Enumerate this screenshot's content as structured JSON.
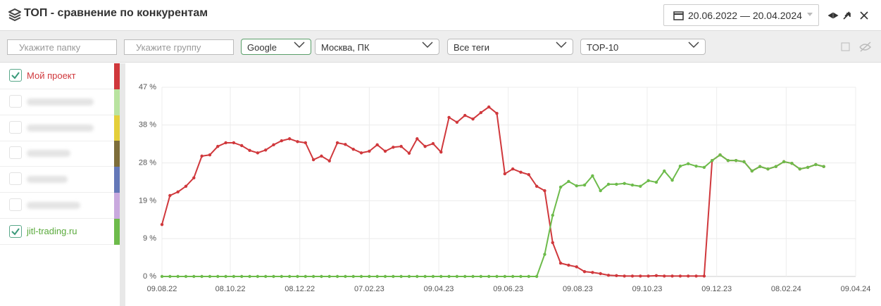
{
  "header": {
    "title": "ТОП - сравнение по конкурентам",
    "date_range": "20.06.2022 — 20.04.2024"
  },
  "toolbar": {
    "folder_placeholder": "Укажите папку",
    "group_placeholder": "Укажите группу",
    "engine": "Google",
    "region": "Москва, ПК",
    "tags": "Все теги",
    "top": "TOP-10"
  },
  "chart_data": {
    "type": "line",
    "x": [
      "09.08.22",
      "16.08.22",
      "23.08.22",
      "30.08.22",
      "06.09.22",
      "13.09.22",
      "20.09.22",
      "27.09.22",
      "04.10.22",
      "11.10.22",
      "18.10.22",
      "25.10.22",
      "01.11.22",
      "08.11.22",
      "15.11.22",
      "22.11.22",
      "29.11.22",
      "06.12.22",
      "13.12.22",
      "20.12.22",
      "27.12.22",
      "03.01.23",
      "10.01.23",
      "17.01.23",
      "24.01.23",
      "31.01.23",
      "07.02.23",
      "14.02.23",
      "21.02.23",
      "28.02.23",
      "07.03.23",
      "14.03.23",
      "21.03.23",
      "28.03.23",
      "04.04.23",
      "11.04.23",
      "18.04.23",
      "25.04.23",
      "02.05.23",
      "09.05.23",
      "16.05.23",
      "23.05.23",
      "30.05.23",
      "06.06.23",
      "13.06.23",
      "20.06.23",
      "27.06.23",
      "04.07.23",
      "11.07.23",
      "18.07.23",
      "25.07.23",
      "01.08.23",
      "08.08.23",
      "15.08.23",
      "22.08.23",
      "29.08.23",
      "05.09.23",
      "12.09.23",
      "19.09.23",
      "26.09.23",
      "03.10.23",
      "10.10.23",
      "17.10.23",
      "24.10.23",
      "31.10.23",
      "07.11.23",
      "14.11.23",
      "21.11.23",
      "28.11.23",
      "05.12.23",
      "12.12.23",
      "19.12.23",
      "26.12.23",
      "02.01.24",
      "09.01.24",
      "16.01.24",
      "23.01.24",
      "30.01.24",
      "06.02.24",
      "13.02.24",
      "20.02.24",
      "27.02.24",
      "05.03.24",
      "12.03.24"
    ],
    "series": [
      {
        "name": "Мой проект",
        "color": "#d0383c",
        "values": [
          12.9,
          20.1,
          21.0,
          22.4,
          24.5,
          29.9,
          30.2,
          32.3,
          33.2,
          33.2,
          32.5,
          31.3,
          30.7,
          31.4,
          32.7,
          33.7,
          34.2,
          33.5,
          33.2,
          29.0,
          29.9,
          28.7,
          33.2,
          32.8,
          31.6,
          30.7,
          31.1,
          32.7,
          31.1,
          32.1,
          32.3,
          30.6,
          34.2,
          32.3,
          33.0,
          30.9,
          39.5,
          38.3,
          40.0,
          39.1,
          40.7,
          42.1,
          40.5,
          25.5,
          26.7,
          25.9,
          25.3,
          22.4,
          21.3,
          8.4,
          3.3,
          2.8,
          2.4,
          1.2,
          1.0,
          0.7,
          0.3,
          0.2,
          0.1,
          0.1,
          0.1,
          0.1,
          0.2,
          0.1,
          0.1,
          0.1,
          0.1,
          0.1,
          0.1,
          28.8,
          30.2,
          28.8,
          28.8,
          28.5,
          26.2,
          27.3,
          26.7,
          27.3,
          28.5,
          28.1,
          26.7,
          27.1,
          27.8,
          27.3
        ]
      },
      {
        "name": "jitl-trading.ru",
        "color": "#6dbb4b",
        "values": [
          0,
          0,
          0,
          0,
          0,
          0,
          0,
          0,
          0,
          0,
          0,
          0,
          0,
          0,
          0,
          0,
          0,
          0,
          0,
          0,
          0,
          0,
          0,
          0,
          0,
          0,
          0,
          0,
          0,
          0,
          0,
          0,
          0,
          0,
          0,
          0,
          0,
          0,
          0,
          0,
          0,
          0,
          0,
          0,
          0,
          0,
          0,
          0,
          5.5,
          15.2,
          22.2,
          23.6,
          22.5,
          22.7,
          25.0,
          21.3,
          22.9,
          22.9,
          23.1,
          22.7,
          22.4,
          23.8,
          23.4,
          26.2,
          23.9,
          27.4,
          28.0,
          27.4,
          27.1,
          28.8,
          30.2,
          28.8,
          28.8,
          28.5,
          26.2,
          27.3,
          26.7,
          27.3,
          28.5,
          28.1,
          26.7,
          27.1,
          27.8,
          27.3
        ]
      }
    ],
    "xlim": [
      "09.08.22",
      "09.04.24"
    ],
    "xticks": [
      "09.08.22",
      "08.10.22",
      "08.12.22",
      "07.02.23",
      "09.04.23",
      "09.06.23",
      "09.08.23",
      "09.10.23",
      "09.12.23",
      "08.02.24",
      "09.04.24"
    ],
    "ylim": [
      0,
      47
    ],
    "yticks": [
      {
        "value": 0,
        "label": "0 %"
      },
      {
        "value": 9.4,
        "label": "9 %"
      },
      {
        "value": 18.8,
        "label": "19 %"
      },
      {
        "value": 28.2,
        "label": "28 %"
      },
      {
        "value": 37.6,
        "label": "38 %"
      },
      {
        "value": 47,
        "label": "47 %"
      }
    ],
    "grid": true
  }
}
